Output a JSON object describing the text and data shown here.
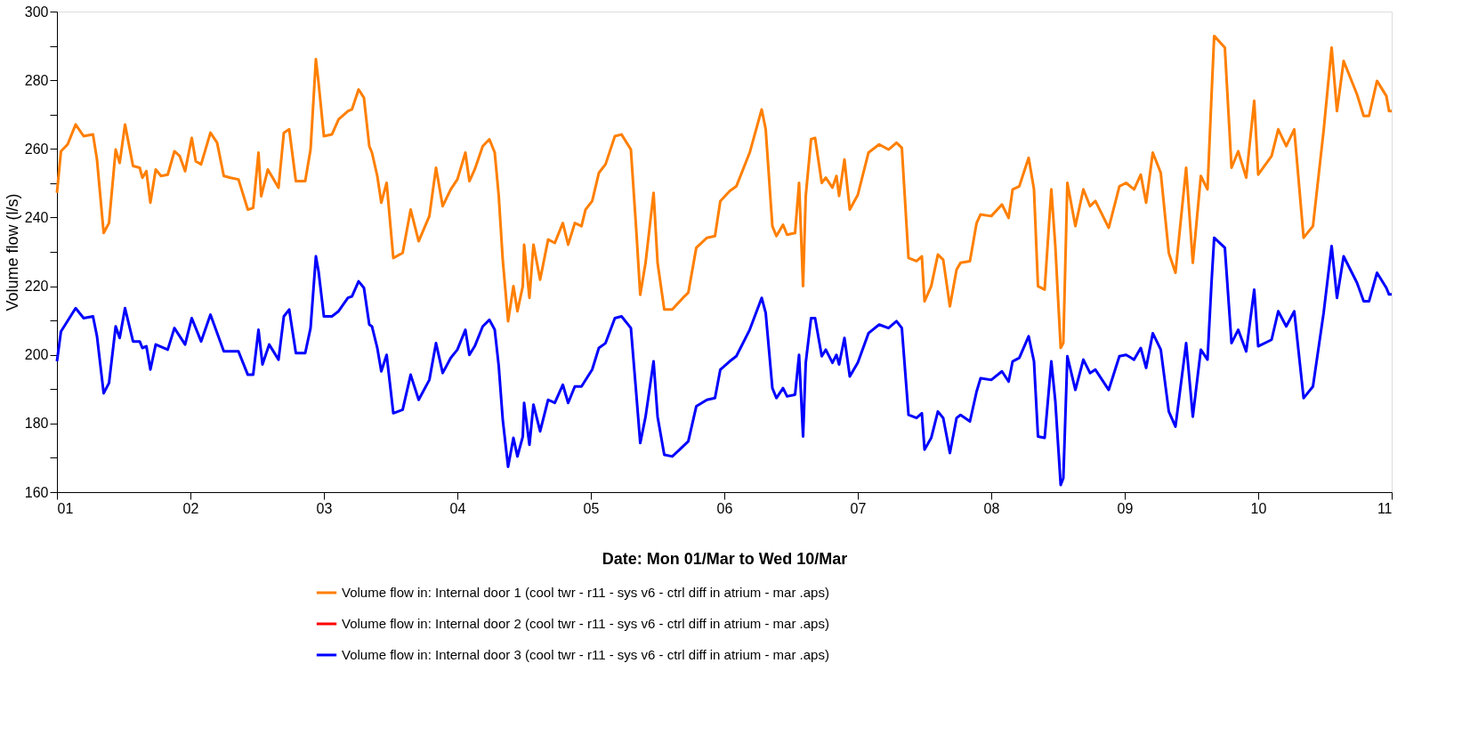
{
  "chart_data": {
    "type": "line",
    "xlabel": "Date: Mon 01/Mar to Wed 10/Mar",
    "ylabel": "Volume flow (l/s)",
    "xlim": [
      1,
      11
    ],
    "xticks": [
      {
        "value": 1,
        "label": "01"
      },
      {
        "value": 2,
        "label": "02"
      },
      {
        "value": 3,
        "label": "03"
      },
      {
        "value": 4,
        "label": "04"
      },
      {
        "value": 5,
        "label": "05"
      },
      {
        "value": 6,
        "label": "06"
      },
      {
        "value": 7,
        "label": "07"
      },
      {
        "value": 8,
        "label": "08"
      },
      {
        "value": 9,
        "label": "09"
      },
      {
        "value": 10,
        "label": "10"
      },
      {
        "value": 11,
        "label": "11"
      }
    ],
    "ylim": [
      160,
      300
    ],
    "yticks": [
      160,
      {
        "value": 170,
        "label": null
      },
      180,
      {
        "value": 190,
        "label": null
      },
      200,
      {
        "value": 210,
        "label": null
      },
      220,
      {
        "value": 230,
        "label": null
      },
      240,
      {
        "value": 250,
        "label": null
      },
      260,
      {
        "value": 270,
        "label": null
      },
      280,
      {
        "value": 290,
        "label": null
      },
      300
    ],
    "grid": false,
    "legend": "bottom",
    "marker": "none",
    "line_style": "solid",
    "series": [
      {
        "name": "Volume flow in: Internal door 1 (cool twr - r11 - sys v6 - ctrl diff in atrium - mar .aps)",
        "color": "#ff7f00",
        "x": [
          1.0,
          1.03,
          1.08,
          1.14,
          1.2,
          1.27,
          1.3,
          1.35,
          1.39,
          1.44,
          1.47,
          1.51,
          1.57,
          1.62,
          1.64,
          1.67,
          1.7,
          1.74,
          1.78,
          1.83,
          1.88,
          1.92,
          1.96,
          2.01,
          2.04,
          2.08,
          2.15,
          2.2,
          2.25,
          2.3,
          2.36,
          2.43,
          2.47,
          2.51,
          2.53,
          2.58,
          2.66,
          2.7,
          2.74,
          2.79,
          2.86,
          2.9,
          2.94,
          2.96,
          3.0,
          3.06,
          3.11,
          3.18,
          3.21,
          3.26,
          3.3,
          3.34,
          3.36,
          3.4,
          3.43,
          3.47,
          3.52,
          3.59,
          3.65,
          3.71,
          3.79,
          3.84,
          3.89,
          3.95,
          4.0,
          4.06,
          4.09,
          4.13,
          4.19,
          4.24,
          4.28,
          4.31,
          4.34,
          4.38,
          4.42,
          4.45,
          4.49,
          4.5,
          4.54,
          4.57,
          4.62,
          4.68,
          4.73,
          4.79,
          4.83,
          4.88,
          4.93,
          4.96,
          5.01,
          5.06,
          5.11,
          5.18,
          5.23,
          5.3,
          5.34,
          5.37,
          5.41,
          5.47,
          5.5,
          5.55,
          5.61,
          5.69,
          5.73,
          5.79,
          5.87,
          5.93,
          5.97,
          6.04,
          6.09,
          6.19,
          6.28,
          6.31,
          6.36,
          6.39,
          6.44,
          6.47,
          6.53,
          6.56,
          6.59,
          6.61,
          6.65,
          6.68,
          6.73,
          6.76,
          6.81,
          6.84,
          6.86,
          6.9,
          6.94,
          7.0,
          7.08,
          7.16,
          7.23,
          7.29,
          7.33,
          7.38,
          7.44,
          7.48,
          7.5,
          7.55,
          7.6,
          7.64,
          7.69,
          7.74,
          7.77,
          7.84,
          7.89,
          7.92,
          8.0,
          8.08,
          8.13,
          8.16,
          8.21,
          8.28,
          8.32,
          8.35,
          8.4,
          8.45,
          8.48,
          8.52,
          8.54,
          8.57,
          8.63,
          8.69,
          8.74,
          8.78,
          8.88,
          8.96,
          9.01,
          9.07,
          9.12,
          9.16,
          9.21,
          9.27,
          9.33,
          9.38,
          9.46,
          9.51,
          9.57,
          9.62,
          9.65,
          9.67,
          9.75,
          9.8,
          9.85,
          9.91,
          9.97,
          10.0,
          10.1,
          10.15,
          10.21,
          10.27,
          10.34,
          10.41,
          10.49,
          10.55,
          10.59,
          10.64,
          10.74,
          10.79,
          10.83,
          10.89,
          10.96,
          10.98,
          11.0
        ],
        "values": [
          247.2,
          259.3,
          261.3,
          267.1,
          263.7,
          264.2,
          256.9,
          235.5,
          238.4,
          259.8,
          255.9,
          267.1,
          255.0,
          254.5,
          251.6,
          253.5,
          244.3,
          254.0,
          252.1,
          252.5,
          259.3,
          257.9,
          253.5,
          263.2,
          256.4,
          255.5,
          264.7,
          261.8,
          252.1,
          251.6,
          251.1,
          242.3,
          242.8,
          258.9,
          246.2,
          254.0,
          248.7,
          264.7,
          265.7,
          250.6,
          250.6,
          259.8,
          286.1,
          279.3,
          263.7,
          264.2,
          268.6,
          271.0,
          271.5,
          277.3,
          274.9,
          260.8,
          258.9,
          252.1,
          244.3,
          250.1,
          228.2,
          229.7,
          242.3,
          233.1,
          240.4,
          254.5,
          243.3,
          248.2,
          251.1,
          258.9,
          250.6,
          254.0,
          260.8,
          262.8,
          258.9,
          246.3,
          227.7,
          209.8,
          220.0,
          212.7,
          220.0,
          232.1,
          216.6,
          232.1,
          221.9,
          233.6,
          232.6,
          238.4,
          232.1,
          238.4,
          237.5,
          242.3,
          244.8,
          253.0,
          255.5,
          263.7,
          264.2,
          259.8,
          236.5,
          217.5,
          226.8,
          247.2,
          226.8,
          213.2,
          213.2,
          216.6,
          218.1,
          231.2,
          234.1,
          234.6,
          244.8,
          247.7,
          249.1,
          258.9,
          271.5,
          265.7,
          237.5,
          234.6,
          237.9,
          235.0,
          235.5,
          250.1,
          220.0,
          246.3,
          262.8,
          263.2,
          250.1,
          251.6,
          248.7,
          252.1,
          246.3,
          256.9,
          242.3,
          246.6,
          258.9,
          261.3,
          259.8,
          261.8,
          260.3,
          228.2,
          227.3,
          228.7,
          215.6,
          220.0,
          229.2,
          227.7,
          214.1,
          224.8,
          226.8,
          227.3,
          238.4,
          240.9,
          240.4,
          243.8,
          239.9,
          248.2,
          249.1,
          257.4,
          248.2,
          220.0,
          219.0,
          248.2,
          231.6,
          202.0,
          203.5,
          250.1,
          237.5,
          248.2,
          243.3,
          244.8,
          237.0,
          249.1,
          250.1,
          248.2,
          252.5,
          244.3,
          258.9,
          253.0,
          229.7,
          223.9,
          254.5,
          226.8,
          252.1,
          248.2,
          275.4,
          292.9,
          289.5,
          254.5,
          259.3,
          251.6,
          274.0,
          252.5,
          257.9,
          265.7,
          260.8,
          265.7,
          234.1,
          237.5,
          265.3,
          289.5,
          271.0,
          285.6,
          275.9,
          269.6,
          269.6,
          279.8,
          275.4,
          271.0,
          271.0
        ]
      },
      {
        "name": "Volume flow in: Internal door 2 (cool twr - r11 - sys v6 - ctrl diff in atrium - mar .aps)",
        "color": "#ff0000"
      },
      {
        "name": "Volume flow in: Internal door 3 (cool twr - r11 - sys v6 - ctrl diff in atrium - mar .aps)",
        "color": "#0000ff",
        "x": [
          1.0,
          1.03,
          1.14,
          1.2,
          1.27,
          1.3,
          1.35,
          1.39,
          1.44,
          1.47,
          1.51,
          1.57,
          1.62,
          1.64,
          1.67,
          1.7,
          1.74,
          1.83,
          1.88,
          1.96,
          2.01,
          2.08,
          2.15,
          2.25,
          2.36,
          2.43,
          2.47,
          2.51,
          2.54,
          2.59,
          2.66,
          2.7,
          2.74,
          2.79,
          2.86,
          2.9,
          2.94,
          2.96,
          3.0,
          3.06,
          3.11,
          3.18,
          3.21,
          3.26,
          3.3,
          3.34,
          3.36,
          3.4,
          3.43,
          3.47,
          3.52,
          3.59,
          3.65,
          3.71,
          3.79,
          3.84,
          3.89,
          3.95,
          4.0,
          4.06,
          4.09,
          4.13,
          4.19,
          4.24,
          4.28,
          4.31,
          4.34,
          4.38,
          4.42,
          4.45,
          4.49,
          4.5,
          4.54,
          4.57,
          4.62,
          4.68,
          4.73,
          4.79,
          4.83,
          4.88,
          4.93,
          5.01,
          5.06,
          5.11,
          5.18,
          5.23,
          5.3,
          5.34,
          5.37,
          5.41,
          5.47,
          5.5,
          5.55,
          5.61,
          5.69,
          5.73,
          5.79,
          5.87,
          5.93,
          5.97,
          6.04,
          6.09,
          6.19,
          6.28,
          6.31,
          6.36,
          6.39,
          6.44,
          6.47,
          6.53,
          6.56,
          6.59,
          6.61,
          6.65,
          6.68,
          6.73,
          6.76,
          6.81,
          6.84,
          6.86,
          6.9,
          6.94,
          7.0,
          7.08,
          7.16,
          7.23,
          7.29,
          7.33,
          7.38,
          7.44,
          7.48,
          7.5,
          7.55,
          7.6,
          7.64,
          7.69,
          7.74,
          7.77,
          7.84,
          7.89,
          7.92,
          8.0,
          8.08,
          8.13,
          8.16,
          8.21,
          8.28,
          8.32,
          8.35,
          8.4,
          8.45,
          8.48,
          8.52,
          8.54,
          8.57,
          8.63,
          8.69,
          8.74,
          8.78,
          8.88,
          8.96,
          9.01,
          9.07,
          9.12,
          9.16,
          9.21,
          9.27,
          9.33,
          9.38,
          9.46,
          9.51,
          9.57,
          9.62,
          9.65,
          9.67,
          9.75,
          9.8,
          9.85,
          9.91,
          9.97,
          10.0,
          10.1,
          10.15,
          10.21,
          10.27,
          10.34,
          10.41,
          10.49,
          10.55,
          10.59,
          10.64,
          10.74,
          10.79,
          10.83,
          10.89,
          10.96,
          10.98,
          11.0
        ],
        "values": [
          198.1,
          206.8,
          213.6,
          210.7,
          211.2,
          205.4,
          188.8,
          191.8,
          208.3,
          204.9,
          213.6,
          203.9,
          203.9,
          202.0,
          202.5,
          195.7,
          203.0,
          201.5,
          207.8,
          203.0,
          210.7,
          203.9,
          211.7,
          201.0,
          201.0,
          194.2,
          194.2,
          207.3,
          197.2,
          203.0,
          198.6,
          211.2,
          213.2,
          200.5,
          200.5,
          207.8,
          228.7,
          224.3,
          211.2,
          211.2,
          212.7,
          216.6,
          217.0,
          221.4,
          219.5,
          208.8,
          208.3,
          202.0,
          195.2,
          200.0,
          183.0,
          184.0,
          194.2,
          186.9,
          192.7,
          203.4,
          194.7,
          199.1,
          201.5,
          207.3,
          200.0,
          202.5,
          208.3,
          210.2,
          207.3,
          196.7,
          181.1,
          167.4,
          175.8,
          170.4,
          176.2,
          186.0,
          173.8,
          185.5,
          177.7,
          186.9,
          186.0,
          191.3,
          186.0,
          190.8,
          190.8,
          195.7,
          202.0,
          203.4,
          210.7,
          211.2,
          207.8,
          188.8,
          174.3,
          182.0,
          198.1,
          182.0,
          170.9,
          170.4,
          173.3,
          174.8,
          185.0,
          186.9,
          187.4,
          195.7,
          198.1,
          199.6,
          207.3,
          216.6,
          212.2,
          190.3,
          187.4,
          190.3,
          187.9,
          188.4,
          200.0,
          176.2,
          197.7,
          210.7,
          210.7,
          199.6,
          201.5,
          197.7,
          200.0,
          197.2,
          204.9,
          193.7,
          197.7,
          206.3,
          208.8,
          207.8,
          209.8,
          207.8,
          182.5,
          181.6,
          183.0,
          172.4,
          175.8,
          183.5,
          181.6,
          171.4,
          181.6,
          182.5,
          180.6,
          189.3,
          193.2,
          192.7,
          195.2,
          192.2,
          198.1,
          199.1,
          205.4,
          198.1,
          176.2,
          175.8,
          198.1,
          186.4,
          162.1,
          164.1,
          199.6,
          189.8,
          198.6,
          194.7,
          195.7,
          189.8,
          199.6,
          200.0,
          198.6,
          202.0,
          196.2,
          206.3,
          201.5,
          183.5,
          179.1,
          203.4,
          182.0,
          201.5,
          198.6,
          221.0,
          234.1,
          231.2,
          203.4,
          207.3,
          201.0,
          219.0,
          202.5,
          204.4,
          212.7,
          208.3,
          212.7,
          187.4,
          190.8,
          212.2,
          231.7,
          216.6,
          228.7,
          221.0,
          215.6,
          215.6,
          223.9,
          219.5,
          217.6,
          217.6
        ]
      }
    ]
  }
}
